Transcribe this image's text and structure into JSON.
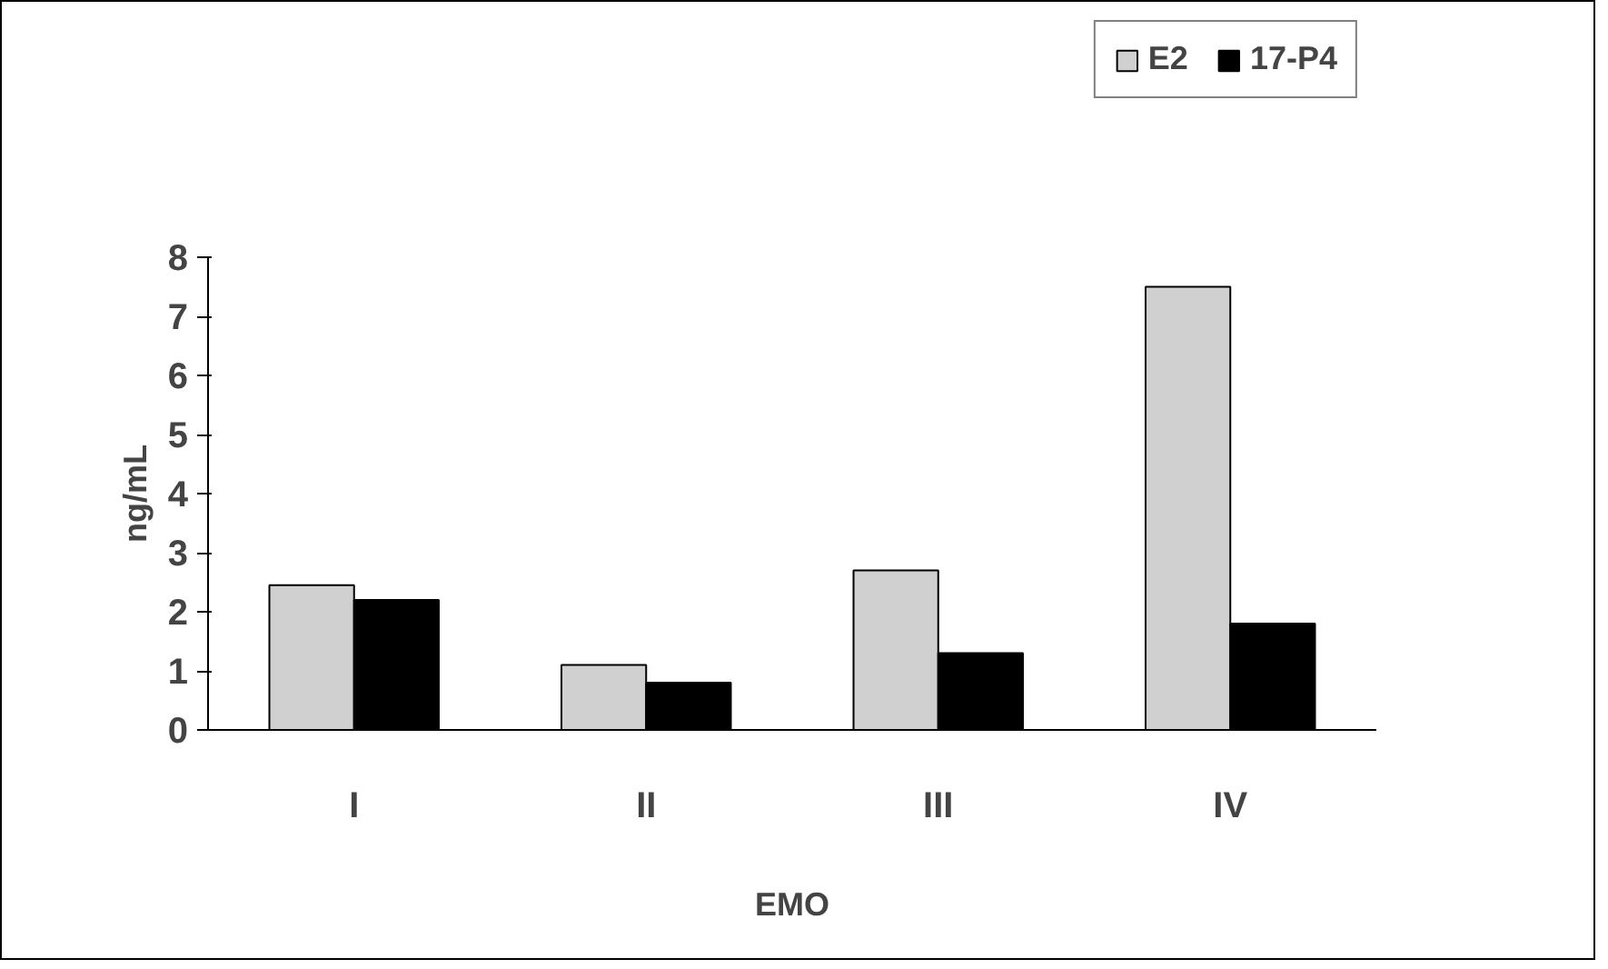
{
  "chart_data": {
    "type": "bar",
    "xlabel": "EMO",
    "ylabel": "ng/mL",
    "categories": [
      "I",
      "II",
      "III",
      "IV"
    ],
    "series": [
      {
        "name": "E2",
        "color": "#d0d0d0",
        "values": [
          2.45,
          1.1,
          2.7,
          7.5
        ]
      },
      {
        "name": "17-P4",
        "color": "#000000",
        "values": [
          2.2,
          0.8,
          1.3,
          1.8
        ]
      }
    ],
    "ylim": [
      0,
      8
    ],
    "yticks": [
      0,
      1,
      2,
      3,
      4,
      5,
      6,
      7,
      8
    ],
    "grid": false,
    "legend": "top right"
  }
}
